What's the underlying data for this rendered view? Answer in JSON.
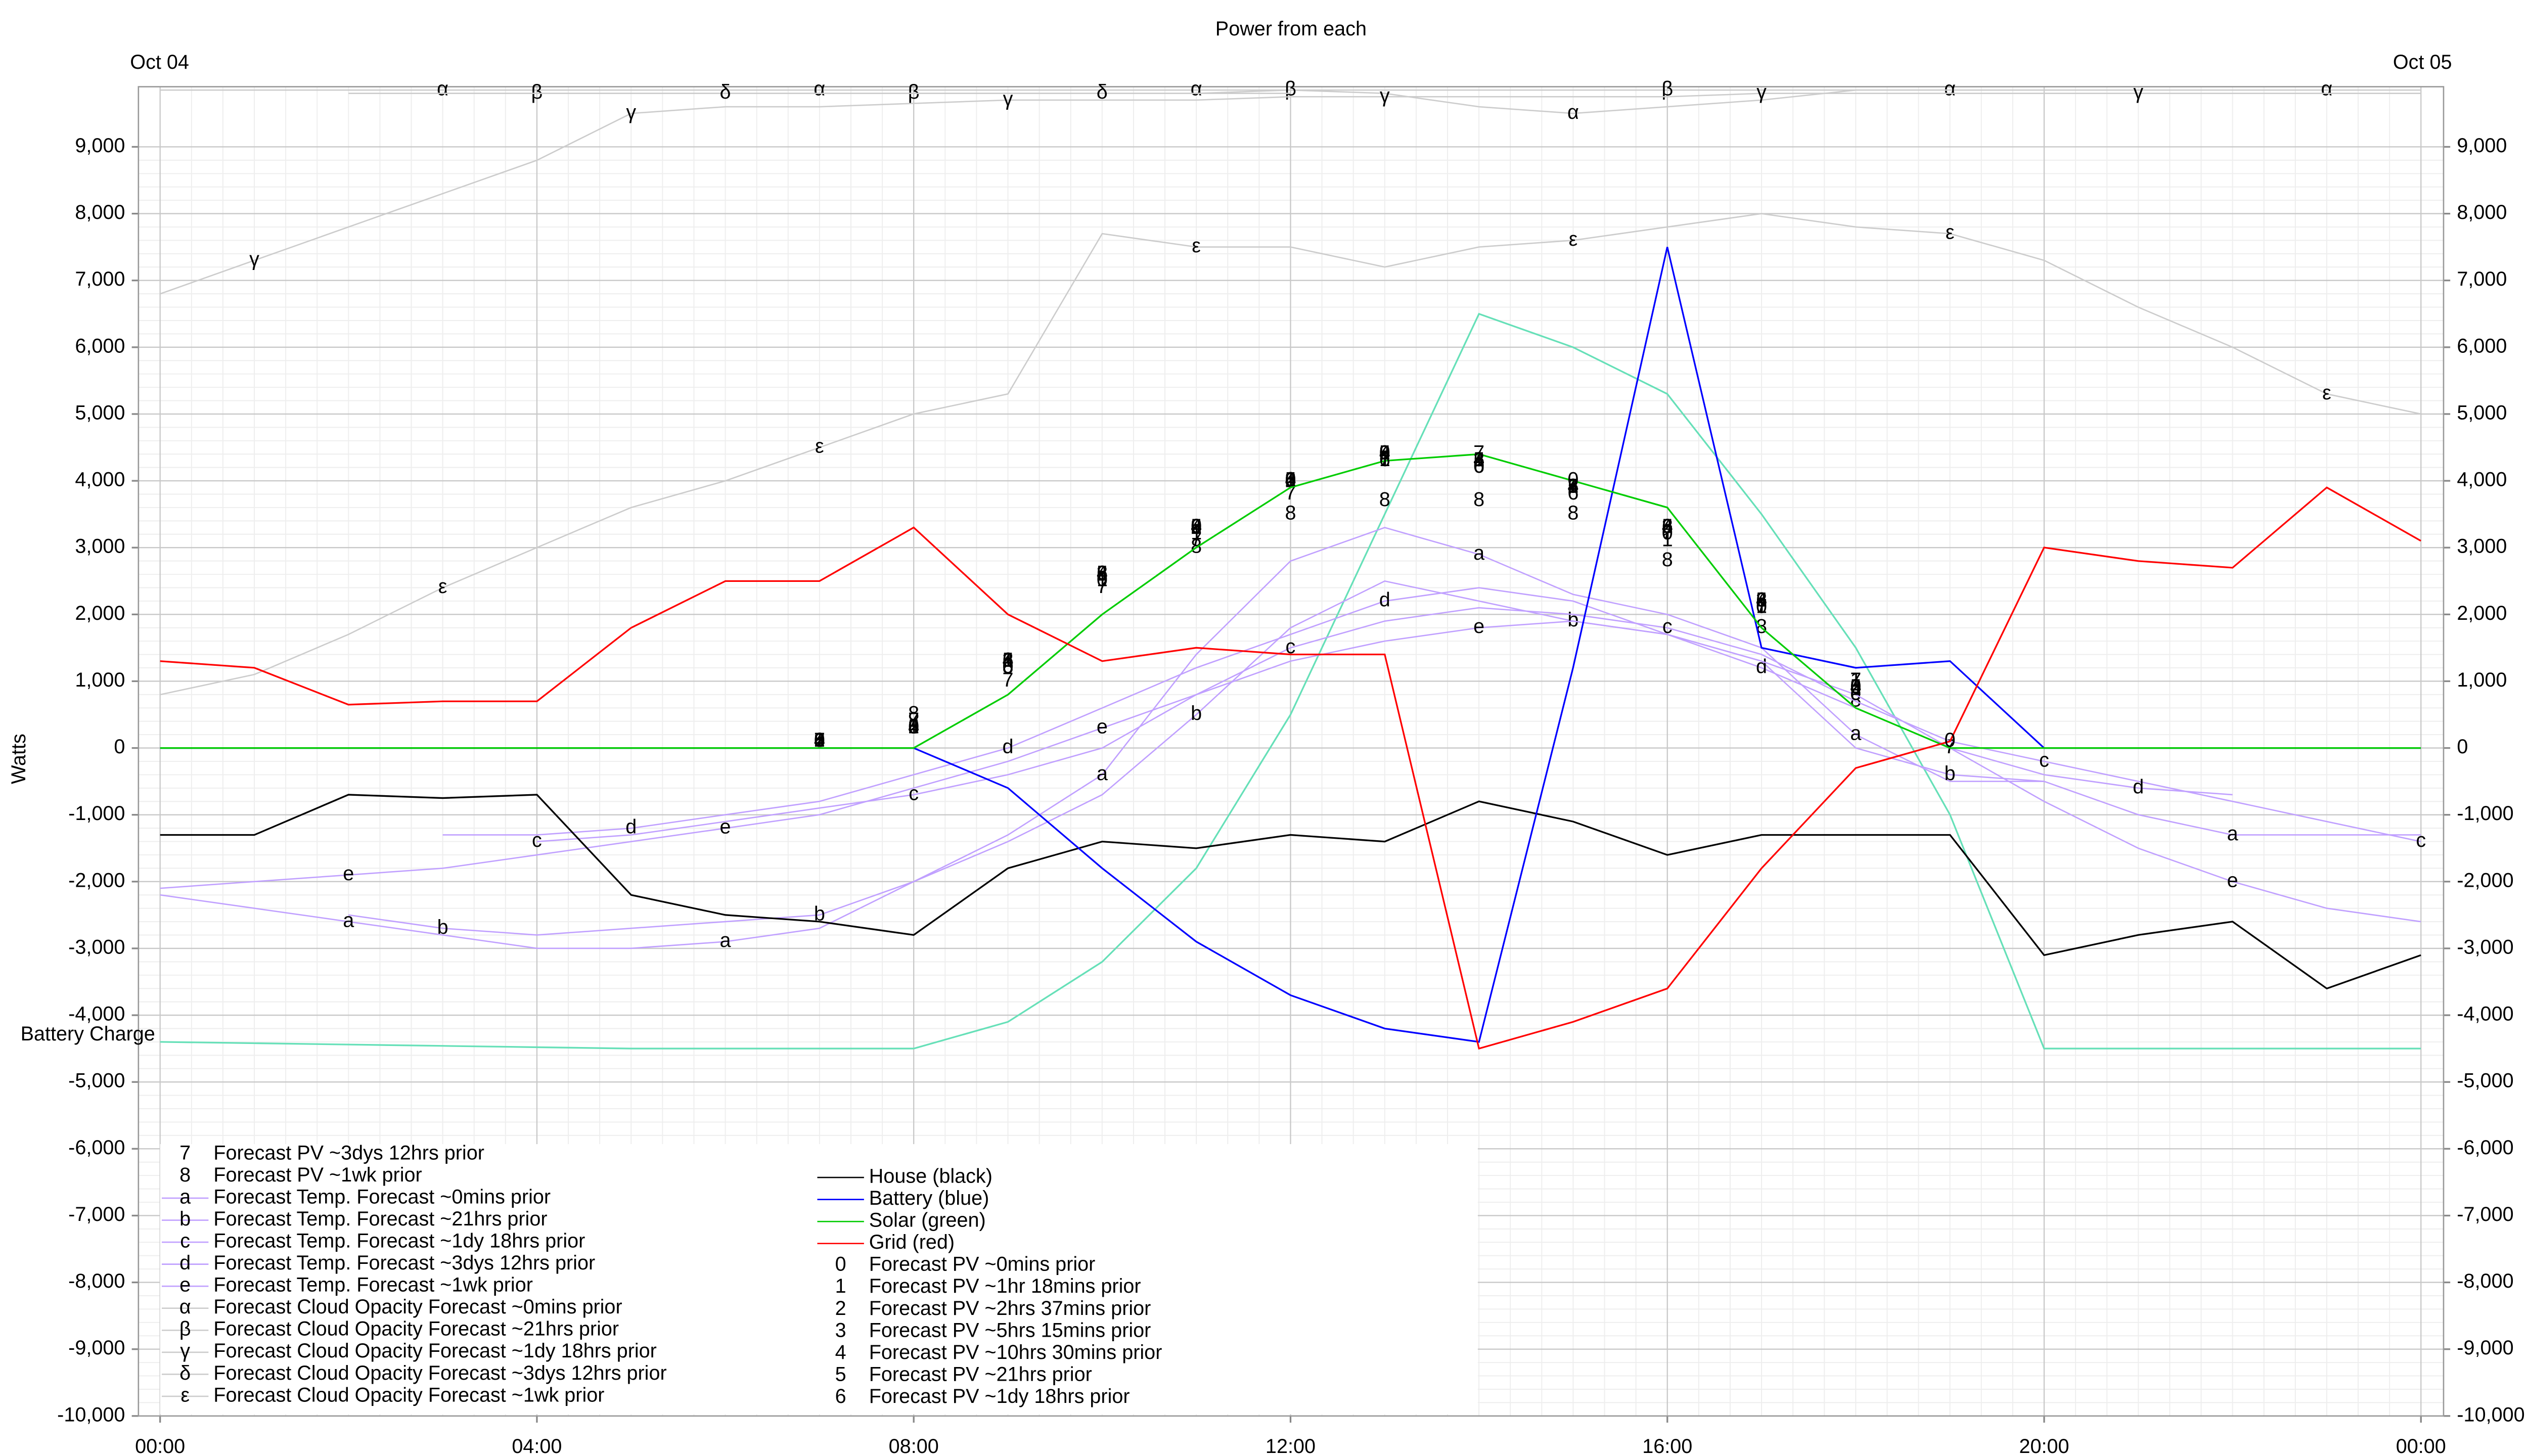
{
  "chart_data": {
    "type": "line",
    "title": "Power from each",
    "date_start": "Oct 04",
    "date_end": "Oct 05",
    "ylabel": "Watts",
    "grid": true,
    "xlim": [
      -0.23,
      24.24
    ],
    "ylim": [
      -10000,
      9900
    ],
    "xticks": [
      {
        "value": 0,
        "label": "00:00"
      },
      {
        "value": 4,
        "label": "04:00"
      },
      {
        "value": 8,
        "label": "08:00"
      },
      {
        "value": 12,
        "label": "12:00"
      },
      {
        "value": 16,
        "label": "16:00"
      },
      {
        "value": 20,
        "label": "20:00"
      },
      {
        "value": 24,
        "label": "00:00"
      }
    ],
    "yticks": [
      {
        "value": -10000,
        "label": "-10,000"
      },
      {
        "value": -9000,
        "label": "-9,000"
      },
      {
        "value": -8000,
        "label": "-8,000"
      },
      {
        "value": -7000,
        "label": "-7,000"
      },
      {
        "value": -6000,
        "label": "-6,000"
      },
      {
        "value": -5000,
        "label": "-5,000"
      },
      {
        "value": -4000,
        "label": "-4,000"
      },
      {
        "value": -3000,
        "label": "-3,000"
      },
      {
        "value": -2000,
        "label": "-2,000"
      },
      {
        "value": -1000,
        "label": "-1,000"
      },
      0,
      {
        "value": 1000,
        "label": "1,000"
      },
      {
        "value": 2000,
        "label": "2,000"
      },
      {
        "value": 3000,
        "label": "3,000"
      },
      {
        "value": 4000,
        "label": "4,000"
      },
      {
        "value": 5000,
        "label": "5,000"
      },
      {
        "value": 6000,
        "label": "6,000"
      },
      {
        "value": 7000,
        "label": "7,000"
      },
      {
        "value": 8000,
        "label": "8,000"
      },
      {
        "value": 9000,
        "label": "9,000"
      }
    ],
    "x": [
      0,
      1,
      2,
      3,
      4,
      5,
      6,
      7,
      8,
      9,
      10,
      11,
      12,
      13,
      14,
      15,
      16,
      17,
      18,
      19,
      20,
      21,
      22,
      23,
      24
    ],
    "reference_line": {
      "label": "Battery Charge",
      "color": "#66e0b8",
      "values": [
        -4400,
        -4420,
        -4440,
        -4460,
        -4480,
        -4500,
        -4500,
        -4500,
        -4500,
        -4100,
        -3200,
        -1800,
        500,
        3500,
        6500,
        6000,
        5300,
        3500,
        1500,
        -1000,
        -4500,
        -4500,
        -4500,
        -4500,
        -4500
      ]
    },
    "series": [
      {
        "name": "Forecast PV ~3dys 12hrs prior",
        "marker": "7",
        "style": "markers",
        "color": "#000000",
        "values": [
          null,
          null,
          null,
          null,
          null,
          null,
          null,
          100,
          400,
          1000,
          2400,
          3100,
          3800,
          4300,
          4400,
          3900,
          3200,
          2100,
          1000,
          0,
          null,
          null,
          null,
          null,
          null
        ]
      },
      {
        "name": "Forecast PV ~1wk prior",
        "marker": "8",
        "style": "markers",
        "color": "#000000",
        "values": [
          null,
          null,
          null,
          null,
          null,
          null,
          null,
          100,
          500,
          1200,
          2600,
          3000,
          3500,
          3700,
          3700,
          3500,
          2800,
          1800,
          700,
          null,
          null,
          null,
          null,
          null,
          null
        ]
      },
      {
        "name": "Forecast Temp. Forecast ~0mins prior",
        "marker": "a",
        "style": "line+markers",
        "color": "#c0a0ff",
        "values": [
          -2200,
          -2400,
          -2600,
          -2800,
          -3000,
          -3000,
          -2900,
          -2700,
          -2000,
          -1300,
          -400,
          1400,
          2800,
          3300,
          2900,
          2300,
          2000,
          1500,
          200,
          -500,
          -500,
          -1000,
          -1300,
          -1300,
          -1300
        ]
      },
      {
        "name": "Forecast Temp. Forecast ~21hrs prior",
        "marker": "b",
        "style": "line+markers",
        "color": "#c0a0ff",
        "values": [
          null,
          null,
          -2500,
          -2700,
          -2800,
          -2700,
          -2600,
          -2500,
          -2000,
          -1400,
          -700,
          500,
          1800,
          2500,
          2200,
          1900,
          1700,
          1300,
          0,
          -400,
          -500,
          null,
          null,
          null,
          null
        ]
      },
      {
        "name": "Forecast Temp. Forecast ~1dy 18hrs prior",
        "marker": "c",
        "style": "line+markers",
        "color": "#c0a0ff",
        "values": [
          null,
          null,
          null,
          null,
          -1400,
          -1300,
          -1100,
          -900,
          -700,
          -400,
          0,
          800,
          1500,
          1900,
          2100,
          2000,
          1800,
          1400,
          700,
          100,
          -200,
          -500,
          -800,
          -1100,
          -1400
        ]
      },
      {
        "name": "Forecast Temp. Forecast ~3dys 12hrs prior",
        "marker": "d",
        "style": "line+markers",
        "color": "#c0a0ff",
        "values": [
          null,
          null,
          null,
          -1300,
          -1300,
          -1200,
          -1000,
          -800,
          -400,
          0,
          600,
          1200,
          1700,
          2200,
          2400,
          2200,
          1700,
          1200,
          600,
          0,
          -400,
          -600,
          -700,
          null,
          null
        ]
      },
      {
        "name": "Forecast Temp. Forecast ~1wk prior",
        "marker": "e",
        "style": "line+markers",
        "color": "#c0a0ff",
        "values": [
          -2100,
          -2000,
          -1900,
          -1800,
          -1600,
          -1400,
          -1200,
          -1000,
          -600,
          -200,
          300,
          800,
          1300,
          1600,
          1800,
          1900,
          1700,
          1300,
          800,
          0,
          -800,
          -1500,
          -2000,
          -2400,
          -2600
        ]
      },
      {
        "name": "Forecast Cloud Opacity Forecast ~0mins prior",
        "marker": "α",
        "style": "line+markers",
        "color": "#cccccc",
        "values": [
          9850,
          9850,
          9850,
          9850,
          9850,
          9850,
          9850,
          9850,
          9850,
          9850,
          9850,
          9850,
          9850,
          9800,
          9600,
          9500,
          9600,
          9700,
          9850,
          9850,
          9850,
          9850,
          9850,
          9850,
          9850
        ]
      },
      {
        "name": "Forecast Cloud Opacity Forecast ~21hrs prior",
        "marker": "β",
        "style": "line+markers",
        "color": "#cccccc",
        "values": [
          null,
          null,
          9800,
          9800,
          9800,
          9800,
          9800,
          9800,
          9800,
          9800,
          9800,
          9800,
          9850,
          9850,
          9850,
          9850,
          9850,
          9850,
          9850,
          9850,
          null,
          null,
          null,
          null,
          null
        ]
      },
      {
        "name": "Forecast Cloud Opacity Forecast ~1dy 18hrs prior",
        "marker": "γ",
        "style": "line+markers",
        "color": "#cccccc",
        "values": [
          6800,
          7300,
          7800,
          8300,
          8800,
          9500,
          9600,
          9600,
          9650,
          9700,
          9700,
          9700,
          9750,
          9750,
          9750,
          9750,
          9750,
          9800,
          9800,
          9800,
          9800,
          9800,
          9800,
          9800,
          9800
        ]
      },
      {
        "name": "Forecast Cloud Opacity Forecast ~3dys 12hrs prior",
        "marker": "δ",
        "style": "line+markers",
        "color": "#cccccc",
        "values": [
          null,
          null,
          null,
          9800,
          9800,
          9800,
          9800,
          9800,
          9800,
          9800,
          9800,
          9800,
          9800,
          null,
          null,
          null,
          null,
          null,
          null,
          null,
          null,
          null,
          null,
          null,
          null
        ]
      },
      {
        "name": "Forecast Cloud Opacity Forecast ~1wk prior",
        "marker": "ε",
        "style": "line+markers",
        "color": "#cccccc",
        "values": [
          800,
          1100,
          1700,
          2400,
          3000,
          3600,
          4000,
          4500,
          5000,
          5300,
          7700,
          7500,
          7500,
          7200,
          7500,
          7600,
          7800,
          8000,
          7800,
          7700,
          7300,
          6600,
          6000,
          5300,
          5000
        ]
      },
      {
        "name": "House (black)",
        "style": "line",
        "color": "#000000",
        "values": [
          -1300,
          -1300,
          -700,
          -750,
          -700,
          -2200,
          -2500,
          -2600,
          -2800,
          -1800,
          -1400,
          -1500,
          -1300,
          -1400,
          -800,
          -1100,
          -1600,
          -1300,
          -1300,
          -1300,
          -3100,
          -2800,
          -2600,
          -3600,
          -3100
        ]
      },
      {
        "name": "Battery (blue)",
        "style": "line",
        "color": "#0000ff",
        "values": [
          0,
          0,
          0,
          0,
          0,
          0,
          0,
          0,
          0,
          -600,
          -1800,
          -2900,
          -3700,
          -4200,
          -4400,
          1200,
          7500,
          1500,
          1200,
          1300,
          0,
          0,
          0,
          0,
          0
        ]
      },
      {
        "name": "Solar (green)",
        "style": "line",
        "color": "#00cc00",
        "values": [
          0,
          0,
          0,
          0,
          0,
          0,
          0,
          0,
          0,
          800,
          2000,
          3000,
          3900,
          4300,
          4400,
          4000,
          3600,
          1800,
          600,
          0,
          0,
          0,
          0,
          0,
          0
        ]
      },
      {
        "name": "Grid (red)",
        "style": "line",
        "color": "#ff0000",
        "values": [
          1300,
          1200,
          650,
          700,
          700,
          1800,
          2500,
          2500,
          3300,
          2000,
          1300,
          1500,
          1400,
          1400,
          -4500,
          -4100,
          -3600,
          -1800,
          -300,
          100,
          3000,
          2800,
          2700,
          3900,
          3100
        ]
      },
      {
        "name": "Forecast PV ~0mins prior",
        "marker": "0",
        "style": "markers",
        "color": "#000000",
        "values": [
          null,
          null,
          null,
          null,
          null,
          null,
          null,
          100,
          300,
          1200,
          2500,
          3300,
          4000,
          4400,
          4200,
          4000,
          3200,
          2100,
          900,
          100,
          null,
          null,
          null,
          null,
          null
        ]
      },
      {
        "name": "Forecast PV ~1hr 18mins prior",
        "marker": "1",
        "style": "markers",
        "color": "#000000",
        "values": [
          null,
          null,
          null,
          null,
          null,
          null,
          null,
          100,
          300,
          1300,
          2500,
          3200,
          4000,
          4300,
          4300,
          3900,
          3100,
          2100,
          1000,
          null,
          null,
          null,
          null,
          null,
          null
        ]
      },
      {
        "name": "Forecast PV ~2hrs 37mins prior",
        "marker": "2",
        "style": "markers",
        "color": "#000000",
        "values": [
          null,
          null,
          null,
          null,
          null,
          null,
          null,
          100,
          300,
          1300,
          2600,
          3300,
          4000,
          4400,
          4300,
          3900,
          3300,
          2200,
          900,
          null,
          null,
          null,
          null,
          null,
          null
        ]
      },
      {
        "name": "Forecast PV ~5hrs 15mins prior",
        "marker": "3",
        "style": "markers",
        "color": "#000000",
        "values": [
          null,
          null,
          null,
          null,
          null,
          null,
          null,
          100,
          300,
          1300,
          2600,
          3300,
          4000,
          4400,
          4300,
          3900,
          3300,
          2200,
          900,
          null,
          null,
          null,
          null,
          null,
          null
        ]
      },
      {
        "name": "Forecast PV ~10hrs 30mins prior",
        "marker": "4",
        "style": "markers",
        "color": "#000000",
        "values": [
          null,
          null,
          null,
          null,
          null,
          null,
          null,
          100,
          300,
          1300,
          2600,
          3300,
          4000,
          4400,
          4300,
          3900,
          3300,
          2200,
          900,
          null,
          null,
          null,
          null,
          null,
          null
        ]
      },
      {
        "name": "Forecast PV ~21hrs prior",
        "marker": "5",
        "style": "markers",
        "color": "#000000",
        "values": [
          null,
          null,
          null,
          null,
          null,
          null,
          null,
          100,
          300,
          1300,
          2600,
          3300,
          4000,
          4400,
          4300,
          3900,
          3300,
          2200,
          900,
          null,
          null,
          null,
          null,
          null,
          null
        ]
      },
      {
        "name": "Forecast PV ~1dy 18hrs prior",
        "marker": "6",
        "style": "markers",
        "color": "#000000",
        "values": [
          null,
          null,
          null,
          null,
          null,
          null,
          null,
          100,
          300,
          1300,
          2600,
          3300,
          4000,
          4300,
          4200,
          3800,
          3300,
          2200,
          900,
          null,
          null,
          null,
          null,
          null,
          null
        ]
      }
    ]
  }
}
